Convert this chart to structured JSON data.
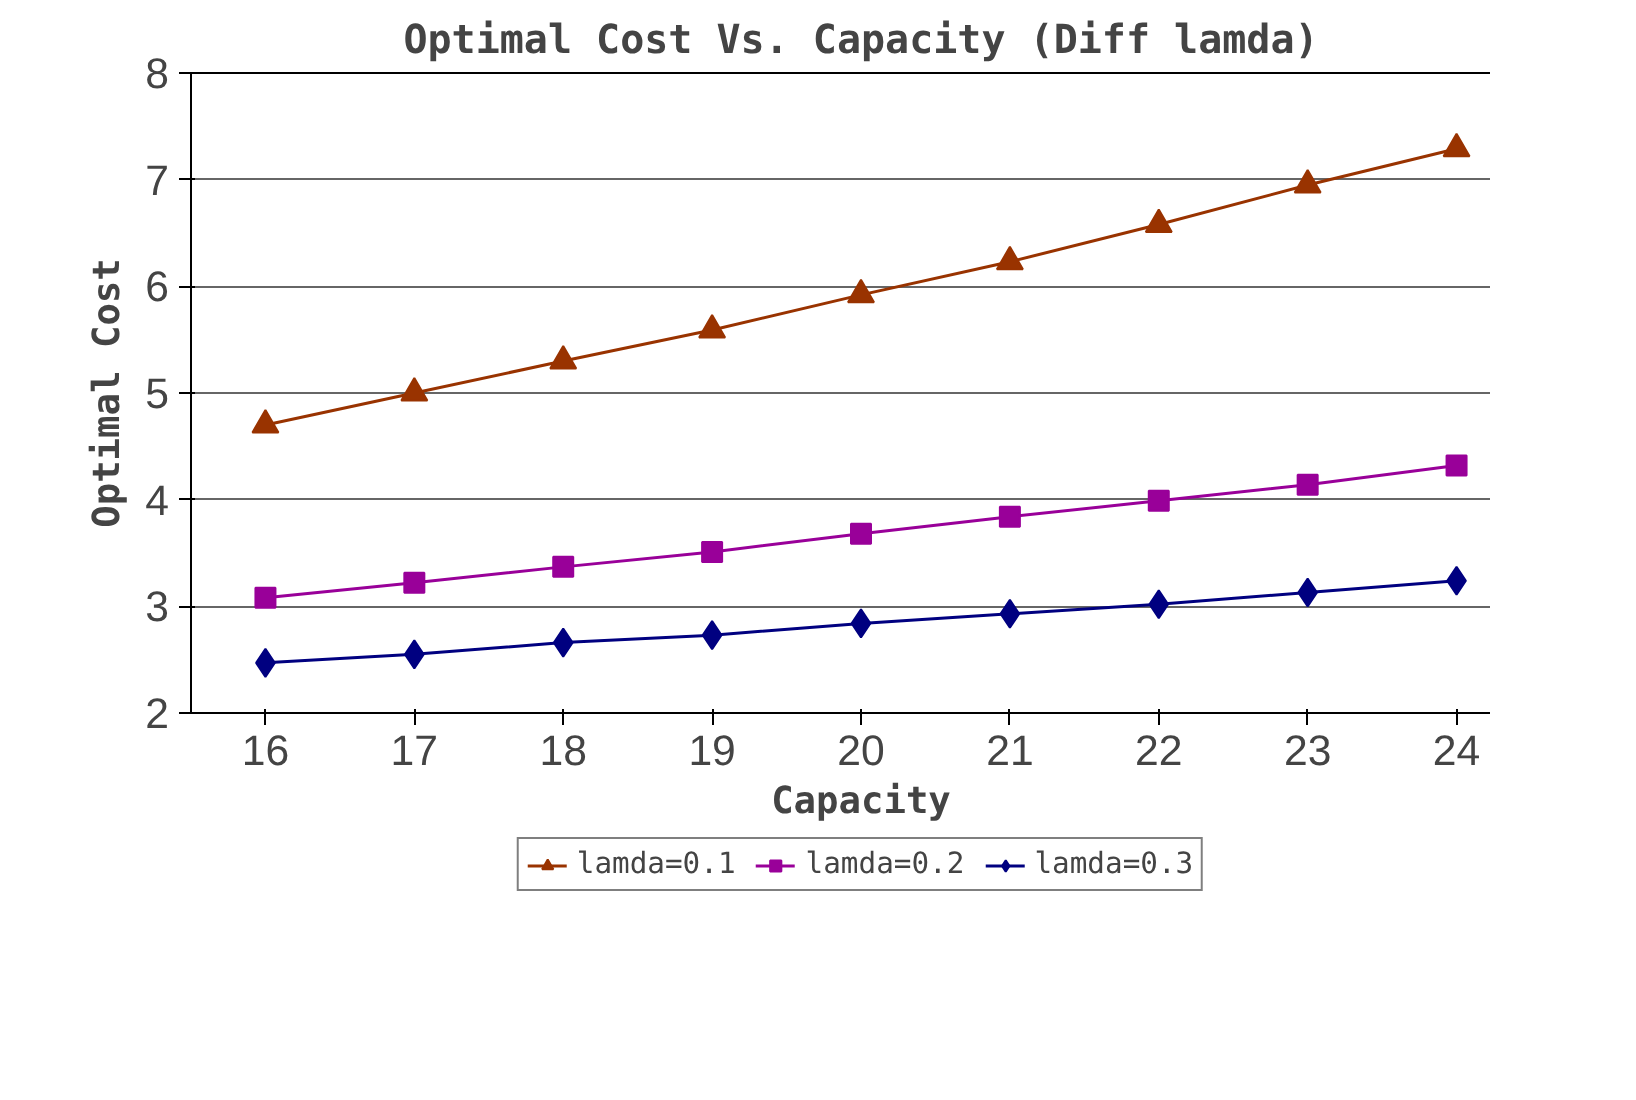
{
  "chart_data": {
    "type": "line",
    "title": "Optimal Cost Vs. Capacity (Diff lamda)",
    "xlabel": "Capacity",
    "ylabel": "Optimal Cost",
    "categories": [
      "16",
      "17",
      "18",
      "19",
      "20",
      "21",
      "22",
      "23",
      "24"
    ],
    "series": [
      {
        "name": "lamda=0.1",
        "color": "#993300",
        "marker": "triangle",
        "values": [
          4.7,
          5.0,
          5.3,
          5.59,
          5.92,
          6.23,
          6.58,
          6.95,
          7.29
        ]
      },
      {
        "name": "lamda=0.2",
        "color": "#990099",
        "marker": "square",
        "values": [
          3.08,
          3.22,
          3.37,
          3.51,
          3.68,
          3.84,
          3.99,
          4.14,
          4.32
        ]
      },
      {
        "name": "lamda=0.3",
        "color": "#000080",
        "marker": "diamond",
        "values": [
          2.47,
          2.55,
          2.66,
          2.73,
          2.84,
          2.93,
          3.02,
          3.13,
          3.24
        ]
      }
    ],
    "ylim": [
      2,
      8
    ],
    "yticks": [
      2,
      3,
      4,
      5,
      6,
      7,
      8
    ],
    "grid": "y",
    "legend": "bottom",
    "line_style": "solid"
  }
}
